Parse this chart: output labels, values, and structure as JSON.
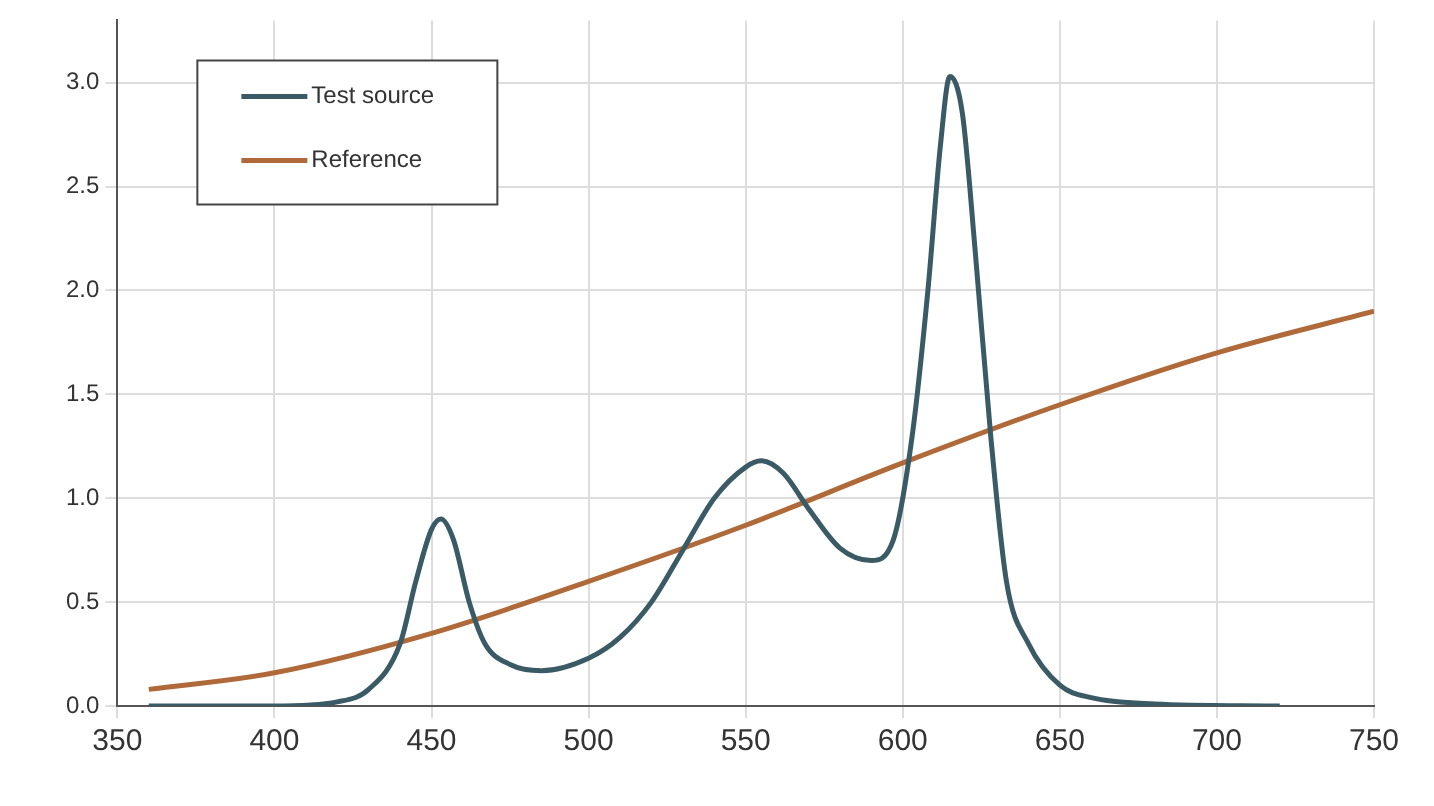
{
  "chart_data": {
    "type": "line",
    "xlim": [
      350,
      750
    ],
    "xticks": [
      350,
      400,
      450,
      500,
      550,
      600,
      650,
      700,
      750
    ],
    "ylim": [
      0,
      3.3
    ],
    "yticks": [
      {
        "value": 0,
        "label": "0.0"
      },
      {
        "value": 0.5,
        "label": "0.5"
      },
      {
        "value": 1,
        "label": "1.0"
      },
      {
        "value": 1.5,
        "label": "1.5"
      },
      {
        "value": 2,
        "label": "2.0"
      },
      {
        "value": 2.5,
        "label": "2.5"
      },
      {
        "value": 3,
        "label": "3.0"
      }
    ],
    "grid": true,
    "legend": "top left",
    "marker": "none",
    "line_style": "solid",
    "series": [
      {
        "name": "Test source",
        "color": "#3a5a66",
        "x": [
          360,
          400,
          420,
          430,
          440,
          445,
          450,
          453,
          457,
          462,
          467,
          475,
          485,
          500,
          510,
          520,
          530,
          540,
          550,
          555,
          562,
          570,
          580,
          590,
          597,
          603,
          608,
          612,
          615,
          619,
          623,
          628,
          633,
          640,
          650,
          660,
          680,
          720
        ],
        "values": [
          0,
          0,
          0.02,
          0.08,
          0.3,
          0.6,
          0.85,
          0.9,
          0.8,
          0.5,
          0.3,
          0.2,
          0.17,
          0.23,
          0.33,
          0.5,
          0.75,
          1.0,
          1.15,
          1.18,
          1.12,
          0.95,
          0.76,
          0.7,
          0.8,
          1.3,
          2.0,
          2.7,
          3.03,
          2.85,
          2.2,
          1.3,
          0.6,
          0.3,
          0.1,
          0.04,
          0.01,
          0
        ]
      },
      {
        "name": "Reference",
        "color": "#b06a3a",
        "x": [
          360,
          400,
          450,
          500,
          550,
          600,
          650,
          700,
          750
        ],
        "values": [
          0.08,
          0.16,
          0.35,
          0.6,
          0.87,
          1.17,
          1.45,
          1.7,
          1.9
        ]
      }
    ]
  }
}
